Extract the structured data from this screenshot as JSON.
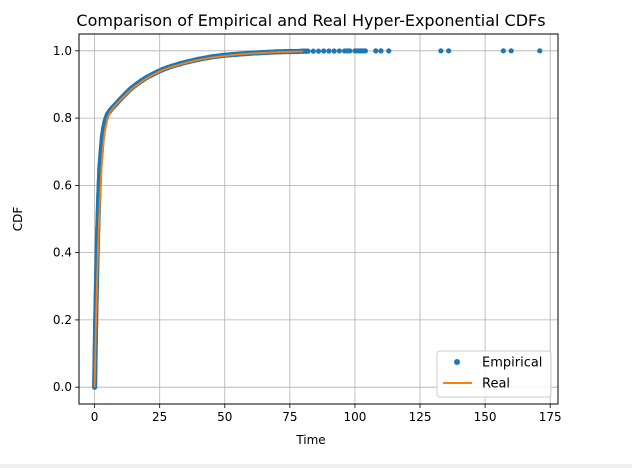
{
  "chart_data": {
    "type": "line",
    "title": "Comparison of Empirical and Real Hyper-Exponential CDFs",
    "xlabel": "Time",
    "ylabel": "CDF",
    "xlim": [
      -6,
      178
    ],
    "ylim": [
      -0.05,
      1.05
    ],
    "xticks": [
      0,
      25,
      50,
      75,
      100,
      125,
      150,
      175
    ],
    "yticks": [
      0.0,
      0.2,
      0.4,
      0.6,
      0.8,
      1.0
    ],
    "xtick_labels": [
      "0",
      "25",
      "50",
      "75",
      "100",
      "125",
      "150",
      "175"
    ],
    "ytick_labels": [
      "0.0",
      "0.2",
      "0.4",
      "0.6",
      "0.8",
      "1.0"
    ],
    "grid": true,
    "legend_position": "lower right",
    "series": [
      {
        "name": "Empirical",
        "style": "markers",
        "color": "#1f77b4",
        "x": [
          0,
          0.2,
          0.4,
          0.6,
          0.8,
          1,
          1.2,
          1.4,
          1.6,
          1.8,
          2,
          2.5,
          3,
          3.5,
          4,
          5,
          6,
          7,
          8,
          10,
          12,
          14,
          16,
          18,
          20,
          22,
          24,
          26,
          28,
          30,
          33,
          36,
          40,
          45,
          50,
          55,
          60,
          65,
          70,
          75,
          78,
          80,
          82,
          84,
          86,
          88,
          90,
          92,
          94,
          96,
          97,
          98,
          100,
          101,
          102,
          103,
          104,
          108,
          110,
          113,
          133,
          136,
          157,
          160,
          171
        ],
        "y": [
          0.0,
          0.1,
          0.19,
          0.27,
          0.34,
          0.41,
          0.47,
          0.52,
          0.57,
          0.61,
          0.65,
          0.7,
          0.745,
          0.77,
          0.79,
          0.812,
          0.823,
          0.832,
          0.84,
          0.857,
          0.873,
          0.888,
          0.9,
          0.911,
          0.921,
          0.929,
          0.937,
          0.944,
          0.95,
          0.955,
          0.962,
          0.968,
          0.975,
          0.982,
          0.987,
          0.99,
          0.993,
          0.995,
          0.997,
          0.998,
          0.998,
          0.999,
          0.999,
          0.999,
          0.999,
          0.9995,
          0.9995,
          0.9995,
          0.9997,
          0.9997,
          0.9998,
          0.9998,
          0.9998,
          0.9999,
          0.9999,
          0.9999,
          0.9999,
          0.9999,
          0.9999,
          0.9999,
          1.0,
          1.0,
          1.0,
          1.0,
          1.0
        ]
      },
      {
        "name": "Real",
        "style": "line",
        "color": "#ff7f0e",
        "x": [
          0,
          0.25,
          0.5,
          0.75,
          1,
          1.25,
          1.5,
          1.75,
          2,
          2.5,
          3,
          3.5,
          4,
          5,
          6,
          7,
          8,
          10,
          12,
          14,
          16,
          18,
          20,
          22,
          24,
          26,
          28,
          30,
          33,
          36,
          40,
          45,
          50,
          55,
          60,
          65,
          70,
          75,
          80
        ],
        "y": [
          0.0,
          0.095,
          0.18,
          0.26,
          0.33,
          0.395,
          0.45,
          0.505,
          0.55,
          0.63,
          0.69,
          0.735,
          0.765,
          0.8,
          0.818,
          0.829,
          0.838,
          0.854,
          0.87,
          0.885,
          0.897,
          0.908,
          0.918,
          0.927,
          0.935,
          0.942,
          0.948,
          0.953,
          0.96,
          0.966,
          0.973,
          0.98,
          0.985,
          0.989,
          0.992,
          0.994,
          0.996,
          0.997,
          0.998
        ]
      }
    ]
  }
}
